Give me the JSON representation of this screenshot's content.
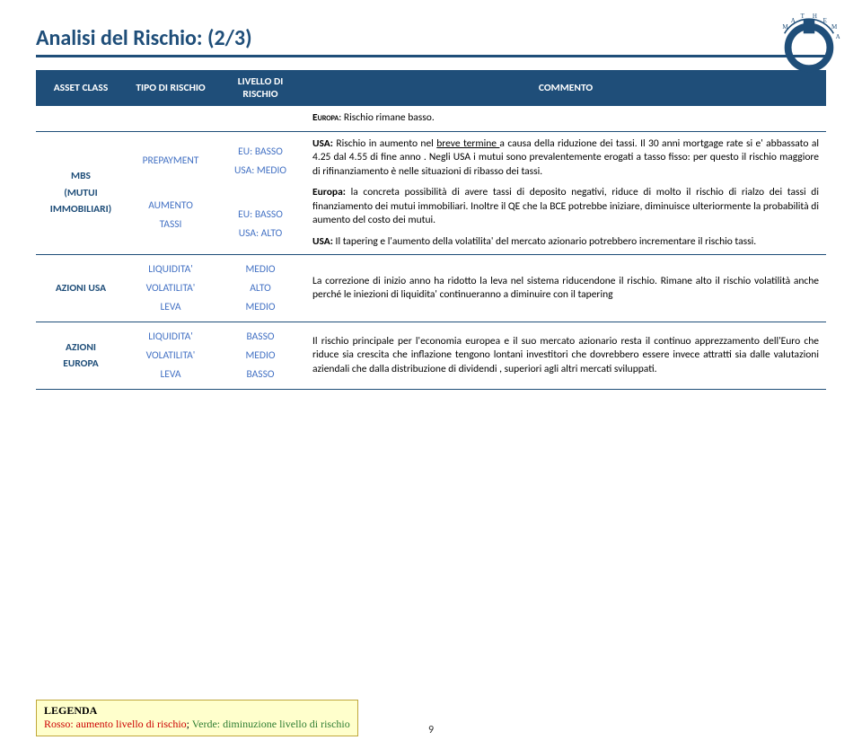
{
  "page": {
    "title": "Analisi del Rischio: (2/3)",
    "number": "9"
  },
  "colors": {
    "primary": "#1f4e79",
    "accent": "#4472c4",
    "legend_bg": "#ffffcc",
    "legend_border": "#bfa73a",
    "red": "#cc0000",
    "green": "#2e7d32"
  },
  "headers": {
    "asset": "ASSET CLASS",
    "tipo": "TIPO DI RISCHIO",
    "livello": "LIVELLO DI RISCHIO",
    "commento": "COMMENTO"
  },
  "intro_comment": "Europa: Rischio rimane basso.",
  "rows": [
    {
      "asset": "MBS\n(MUTUI\nIMMOBILIARI)",
      "tipo": "PREPAYMENT\n\nAUMENTO\nTASSI",
      "livello": "EU: BASSO\nUSA: MEDIO\n\nEU: BASSO\nUSA: ALTO",
      "commento_html": "<p><b>USA:</b> Rischio in aumento nel <u>breve termine </u>a causa della riduzione dei tassi. Il 30 anni mortgage rate si e' abbassato al 4.25 dal 4.55 di fine anno . Negli USA i mutui sono prevalentemente erogati a tasso fisso: per questo il rischio maggiore di rifinanziamento è nelle situazioni di ribasso dei tassi.</p><p><b>Europa:</b> la concreta possibilità di avere tassi di deposito negativi, riduce di molto il rischio di rialzo dei tassi di finanziamento dei mutui immobiliari. Inoltre il QE che la BCE potrebbe iniziare, diminuisce ulteriormente la probabilità di aumento del costo dei mutui.</p><p><b>USA:</b> Il tapering e l'aumento della volatilita' del mercato azionario potrebbero incrementare il rischio tassi.</p>"
    },
    {
      "asset": "AZIONI USA",
      "tipo": "LIQUIDITA'\nVOLATILITA'\nLEVA",
      "livello": "MEDIO\nALTO\nMEDIO",
      "commento_html": "<p>La correzione di inizio anno ha ridotto la leva nel sistema riducendone il rischio. Rimane alto il rischio volatilità anche perché le iniezioni di liquidita' continueranno a diminuire con il tapering</p>"
    },
    {
      "asset": "AZIONI\nEUROPA",
      "tipo": "LIQUIDITA'\nVOLATILITA'\nLEVA",
      "livello": "BASSO\nMEDIO\nBASSO",
      "commento_html": "<p>Il rischio principale per l'economia europea e il suo mercato azionario resta il continuo apprezzamento dell'Euro che riduce sia crescita che inflazione tengono lontani investitori che dovrebbero essere invece attratti sia dalle valutazioni aziendali che dalla distribuzione di dividendi , superiori agli altri mercati sviluppati.</p>"
    }
  ],
  "legend": {
    "title": "LEGENDA",
    "red_text": "Rosso: aumento livello di rischio",
    "sep": "; ",
    "green_text": "Verde: diminuzione livello di rischio"
  }
}
